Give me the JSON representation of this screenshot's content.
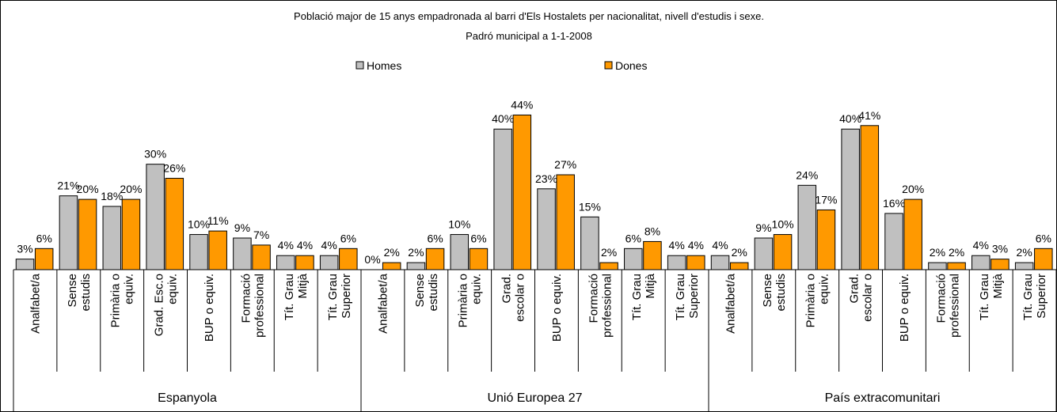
{
  "chart_data": {
    "type": "bar",
    "title": "Població major de 15 anys empadronada al barri d'Els Hostalets per nacionalitat, nivell d'estudis i sexe.",
    "subtitle": "Padró municipal a 1-1-2008",
    "groups": [
      "Espanyola",
      "Unió Europea 27",
      "País extracomunitari"
    ],
    "categories": [
      "Analfabet/a",
      "Sense\nestudis",
      "Primària o\nequiv.",
      "Grad. Esc.o\nequiv.",
      "BUP o equiv.",
      "Formació\nprofessional",
      "Tít. Grau\nMitjà",
      "Tít. Grau\nSuperior",
      "Analfabet/a",
      "Sense\nestudis",
      "Primària o\nequiv.",
      "Grad.\nescolar o",
      "BUP o equiv.",
      "Formació\nprofessional",
      "Tít. Grau\nMitjà",
      "Tít. Grau\nSuperior",
      "Analfabet/a",
      "Sense\nestudis",
      "Primària o\nequiv.",
      "Grad.\nescolar o",
      "BUP o equiv.",
      "Formació\nprofessional",
      "Tít. Grau\nMitjà",
      "Tít. Grau\nSuperior"
    ],
    "series": [
      {
        "name": "Homes",
        "color": "#c0c0c0",
        "values": [
          3,
          21,
          18,
          30,
          10,
          9,
          4,
          4,
          0,
          2,
          10,
          40,
          23,
          15,
          6,
          4,
          4,
          9,
          24,
          40,
          16,
          2,
          4,
          2
        ],
        "value_labels": [
          "3%",
          "21%",
          "18%",
          "30%",
          "10%",
          "9%",
          "4%",
          "4%",
          "0%",
          "2%",
          "10%",
          "40%",
          "23%",
          "15%",
          "6%",
          "4%",
          "4%",
          "9%",
          "24%",
          "40%",
          "16%",
          "2%",
          "4%",
          "2%"
        ]
      },
      {
        "name": "Dones",
        "color": "#ff9900",
        "values": [
          6,
          20,
          20,
          26,
          11,
          7,
          4,
          6,
          2,
          6,
          6,
          44,
          27,
          2,
          8,
          4,
          2,
          10,
          17,
          41,
          20,
          2,
          3,
          6
        ],
        "value_labels": [
          "6%",
          "20%",
          "20%",
          "26%",
          "11%",
          "7%",
          "4%",
          "6%",
          "2%",
          "6%",
          "6%",
          "44%",
          "27%",
          "2%",
          "8%",
          "4%",
          "2%",
          "10%",
          "17%",
          "41%",
          "20%",
          "2%",
          "3%",
          "6%"
        ]
      }
    ],
    "ylim": [
      0,
      45
    ]
  }
}
